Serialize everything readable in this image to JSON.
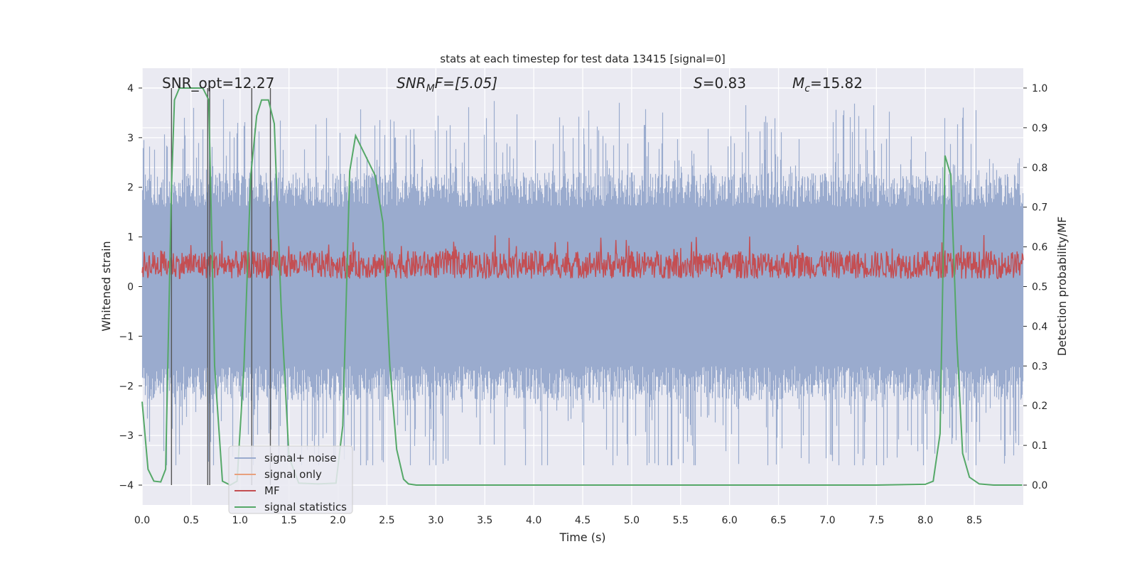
{
  "chart_data": {
    "type": "line",
    "title": "stats at each timestep for test data 13415 [signal=0]",
    "xlabel": "Time (s)",
    "ylabel_left": "Whitened strain",
    "ylabel_right": "Detection probability/MF",
    "xlim": [
      0,
      9.0
    ],
    "ylim_left": [
      -4.4,
      4.4
    ],
    "ylim_right": [
      -0.05,
      1.05
    ],
    "x_ticks": [
      0.0,
      0.5,
      1.0,
      1.5,
      2.0,
      2.5,
      3.0,
      3.5,
      4.0,
      4.5,
      5.0,
      5.5,
      6.0,
      6.5,
      7.0,
      7.5,
      8.0,
      8.5
    ],
    "x_tick_labels": [
      "0.0",
      "0.5",
      "1.0",
      "1.5",
      "2.0",
      "2.5",
      "3.0",
      "3.5",
      "4.0",
      "4.5",
      "5.0",
      "5.5",
      "6.0",
      "6.5",
      "7.0",
      "7.5",
      "8.0",
      "8.5"
    ],
    "y_left_ticks": [
      -4,
      -3,
      -2,
      -1,
      0,
      1,
      2,
      3,
      4
    ],
    "y_left_tick_labels": [
      "−4",
      "−3",
      "−2",
      "−1",
      "0",
      "1",
      "2",
      "3",
      "4"
    ],
    "y_right_ticks": [
      0.0,
      0.1,
      0.2,
      0.3,
      0.4,
      0.5,
      0.6,
      0.7,
      0.8,
      0.9,
      1.0
    ],
    "y_right_tick_labels": [
      "0.0",
      "0.1",
      "0.2",
      "0.3",
      "0.4",
      "0.5",
      "0.6",
      "0.7",
      "0.8",
      "0.9",
      "1.0"
    ],
    "annotations": {
      "snr_opt": "SNR_opt=12.27",
      "snr_mf_base": "SNR",
      "snr_mf_sub": "M",
      "snr_mf_rest": "F=[5.05]",
      "s_base": "S",
      "s_rest": "=0.83",
      "mc_base": "M",
      "mc_sub": "c",
      "mc_rest": "=15.82"
    },
    "grid": true,
    "legend_position": "lower-left",
    "series": [
      {
        "name": "signal+ noise",
        "axis": "left",
        "color": "#9aabce",
        "style": "dense-noise",
        "typical_range": [
          -1.6,
          1.6
        ],
        "peak_range": [
          -3.6,
          4.0
        ]
      },
      {
        "name": "signal only",
        "axis": "left",
        "color": "#e8a07e",
        "style": "line",
        "values": []
      },
      {
        "name": "MF",
        "axis": "right",
        "color": "#c44e52",
        "style": "noise-band",
        "typical_range": [
          0.52,
          0.59
        ],
        "peak": 0.63
      },
      {
        "name": "signal statistics",
        "axis": "right",
        "color": "#55a868",
        "x": [
          0.0,
          0.06,
          0.12,
          0.19,
          0.24,
          0.3,
          0.33,
          0.38,
          0.5,
          0.62,
          0.68,
          0.74,
          0.82,
          0.9,
          0.97,
          1.04,
          1.11,
          1.17,
          1.22,
          1.29,
          1.35,
          1.42,
          1.5,
          1.6,
          1.8,
          1.98,
          2.05,
          2.12,
          2.18,
          2.3,
          2.38,
          2.46,
          2.53,
          2.6,
          2.67,
          2.72,
          2.8,
          3.5,
          4.5,
          5.5,
          6.5,
          7.5,
          8.0,
          8.08,
          8.15,
          8.2,
          8.26,
          8.32,
          8.38,
          8.45,
          8.55,
          8.7,
          8.99
        ],
        "y": [
          0.21,
          0.04,
          0.01,
          0.008,
          0.04,
          0.75,
          0.97,
          1.0,
          1.0,
          1.0,
          0.97,
          0.3,
          0.01,
          0.0,
          0.01,
          0.3,
          0.78,
          0.93,
          0.97,
          0.97,
          0.91,
          0.45,
          0.07,
          0.005,
          0.003,
          0.005,
          0.15,
          0.79,
          0.88,
          0.82,
          0.78,
          0.66,
          0.3,
          0.09,
          0.015,
          0.003,
          0.0,
          0.0,
          0.0,
          0.0,
          0.0,
          0.0,
          0.002,
          0.01,
          0.13,
          0.83,
          0.78,
          0.37,
          0.08,
          0.02,
          0.003,
          0.0,
          0.0
        ]
      }
    ],
    "vertical_lines": [
      0.3,
      0.67,
      0.69,
      1.12,
      1.31
    ]
  }
}
